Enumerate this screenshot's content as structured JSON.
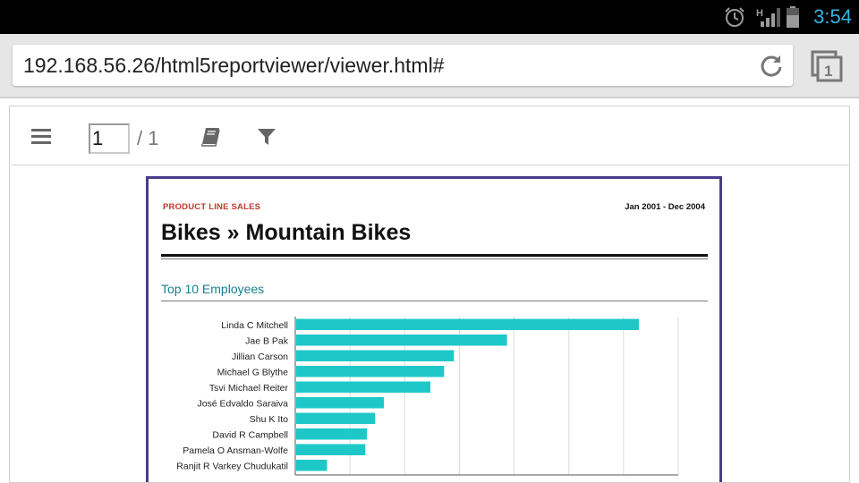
{
  "status_bar": {
    "time": "3:54",
    "signal_type": "H",
    "icons": [
      "alarm-icon",
      "signal-icon",
      "battery-icon"
    ],
    "time_color": "#33b5e5"
  },
  "browser": {
    "url": "192.168.56.26/html5reportviewer/viewer.html#",
    "tab_count": "1",
    "icons": [
      "reload-icon",
      "tabs-icon"
    ]
  },
  "viewer_toolbar": {
    "current_page": "1",
    "total_pages": "/ 1",
    "icons": [
      "menu-icon",
      "book-icon",
      "filter-icon"
    ]
  },
  "report": {
    "tag": "PRODUCT LINE SALES",
    "date_range": "Jan 2001 - Dec 2004",
    "title": "Bikes » Mountain Bikes",
    "subtitle": "Top 10 Employees",
    "accent_color": "#4a3b8c",
    "tag_color": "#c0392b",
    "subtitle_color": "#1a7f8f"
  },
  "chart_data": {
    "type": "bar",
    "orientation": "horizontal",
    "categories": [
      "Linda C Mitchell",
      "Jae B Pak",
      "Jillian Carson",
      "Michael G Blythe",
      "Tsvi Michael Reiter",
      "José Edvaldo Saraiva",
      "Shu K Ito",
      "David R Campbell",
      "Pamela O Ansman-Wolfe",
      "Ranjit R Varkey Chudukatil"
    ],
    "values": [
      62.8,
      38.7,
      29.0,
      27.2,
      24.7,
      16.2,
      14.6,
      13.1,
      12.8,
      5.8
    ],
    "xlim": [
      0,
      70
    ],
    "grid": true,
    "bar_color": "#1ec8c8"
  }
}
